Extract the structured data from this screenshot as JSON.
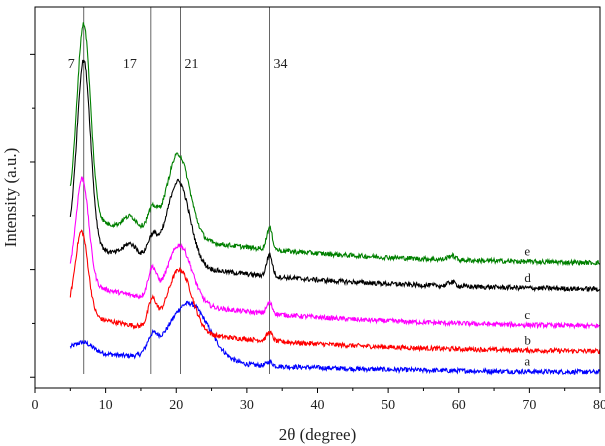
{
  "chart_data": {
    "type": "line",
    "xlabel": "2θ (degree)",
    "ylabel": "Intensity (a.u.)",
    "xlim": [
      0,
      80
    ],
    "x_ticks": [
      0,
      10,
      20,
      30,
      40,
      50,
      60,
      70,
      80
    ],
    "y_ticks_labeled": false,
    "grid": false,
    "legend": "none",
    "reference_lines": [
      {
        "label": "7",
        "x": 6.9
      },
      {
        "label": "17",
        "x": 16.4
      },
      {
        "label": "21",
        "x": 20.6
      },
      {
        "label": "34",
        "x": 33.2
      }
    ],
    "series": [
      {
        "name": "a",
        "color": "#0000ff",
        "baseline": 0.13,
        "tail": 0.0,
        "peaks": [
          [
            6.9,
            0.04,
            1.2
          ],
          [
            16.6,
            0.07,
            0.7
          ],
          [
            21.8,
            0.27,
            2.8
          ],
          [
            33.2,
            0.02,
            0.4
          ]
        ],
        "x": [
          5,
          10,
          15,
          17,
          20,
          22,
          25,
          30,
          40,
          50,
          60,
          70,
          80
        ],
        "y": [
          0.12,
          0.1,
          0.13,
          0.15,
          0.22,
          0.26,
          0.19,
          0.07,
          0.02,
          0.01,
          0.005,
          0.0,
          0.0
        ]
      },
      {
        "name": "b",
        "color": "#ff0000",
        "baseline": 0.3,
        "tail": 0.08,
        "peaks": [
          [
            6.6,
            0.39,
            0.9
          ],
          [
            16.6,
            0.12,
            0.6
          ],
          [
            20.5,
            0.29,
            1.7
          ],
          [
            33.2,
            0.04,
            0.4
          ]
        ],
        "x": [
          5,
          6.6,
          10,
          15,
          17,
          20.5,
          25,
          30,
          40,
          50,
          60,
          70,
          80
        ],
        "y": [
          0.3,
          0.64,
          0.2,
          0.18,
          0.25,
          0.36,
          0.2,
          0.16,
          0.12,
          0.1,
          0.09,
          0.085,
          0.08
        ]
      },
      {
        "name": "c",
        "color": "#ff00ff",
        "baseline": 0.45,
        "tail": 0.19,
        "peaks": [
          [
            6.7,
            0.49,
            0.9
          ],
          [
            16.6,
            0.13,
            0.6
          ],
          [
            20.5,
            0.27,
            1.7
          ],
          [
            33.2,
            0.05,
            0.4
          ]
        ],
        "x": [
          5,
          6.7,
          10,
          15,
          17,
          20.5,
          25,
          30,
          40,
          50,
          60,
          70,
          80
        ],
        "y": [
          0.45,
          0.9,
          0.35,
          0.3,
          0.4,
          0.5,
          0.32,
          0.28,
          0.23,
          0.21,
          0.2,
          0.195,
          0.19
        ]
      },
      {
        "name": "d",
        "color": "#000000",
        "baseline": 0.63,
        "tail": 0.36,
        "peaks": [
          [
            6.9,
            0.86,
            0.95
          ],
          [
            13.5,
            0.06,
            1.0
          ],
          [
            16.6,
            0.1,
            0.7
          ],
          [
            20.3,
            0.39,
            1.6
          ],
          [
            33.2,
            0.1,
            0.4
          ],
          [
            59.0,
            0.02,
            0.5
          ]
        ],
        "x": [
          5,
          6.9,
          10,
          13.5,
          16.6,
          20.3,
          25,
          30,
          33.2,
          40,
          50,
          60,
          70,
          80
        ],
        "y": [
          0.63,
          1.31,
          0.6,
          0.56,
          0.6,
          0.87,
          0.58,
          0.48,
          0.55,
          0.43,
          0.4,
          0.39,
          0.37,
          0.36
        ]
      },
      {
        "name": "e",
        "color": "#008000",
        "baseline": 0.76,
        "tail": 0.48,
        "peaks": [
          [
            6.9,
            0.9,
            0.95
          ],
          [
            13.5,
            0.06,
            1.0
          ],
          [
            16.6,
            0.1,
            0.7
          ],
          [
            20.3,
            0.39,
            1.6
          ],
          [
            33.2,
            0.1,
            0.4
          ],
          [
            59.0,
            0.02,
            0.5
          ]
        ],
        "x": [
          5,
          6.9,
          10,
          13.5,
          16.6,
          20.3,
          25,
          30,
          33.2,
          40,
          50,
          60,
          70,
          80
        ],
        "y": [
          0.76,
          1.48,
          0.73,
          0.7,
          0.74,
          1.0,
          0.72,
          0.62,
          0.68,
          0.56,
          0.53,
          0.51,
          0.5,
          0.48
        ]
      }
    ]
  }
}
